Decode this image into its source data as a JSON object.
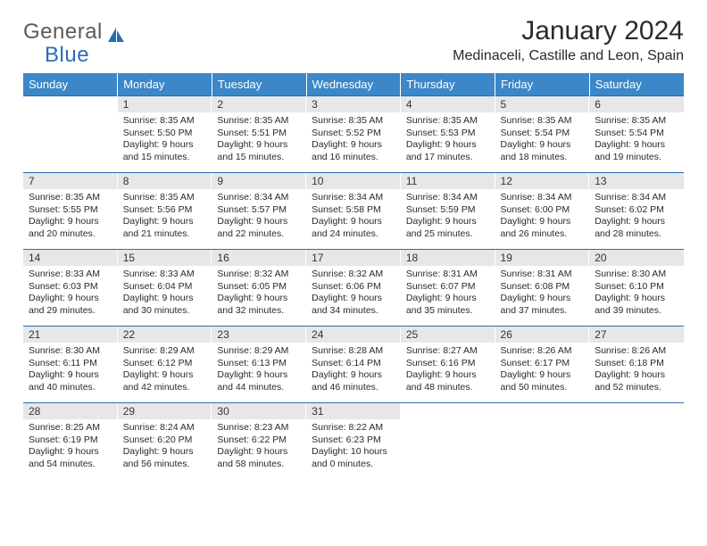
{
  "logo": {
    "part1": "General",
    "part2": "Blue"
  },
  "title": "January 2024",
  "location": "Medinaceli, Castille and Leon, Spain",
  "colors": {
    "header_bg": "#3b87c8",
    "header_text": "#ffffff",
    "daynum_bg": "#e7e7e7",
    "rule": "#2a6db5",
    "logo_gray": "#5a5a5a",
    "logo_blue": "#2a6db5",
    "page_bg": "#ffffff",
    "text": "#2a2a2a"
  },
  "typography": {
    "title_fontsize": 30,
    "location_fontsize": 16,
    "weekday_fontsize": 13,
    "daynum_fontsize": 12,
    "body_fontsize": 10.5
  },
  "weekdays": [
    "Sunday",
    "Monday",
    "Tuesday",
    "Wednesday",
    "Thursday",
    "Friday",
    "Saturday"
  ],
  "weeks": [
    [
      {
        "n": "",
        "sr": "",
        "ss": "",
        "dl1": "",
        "dl2": ""
      },
      {
        "n": "1",
        "sr": "Sunrise: 8:35 AM",
        "ss": "Sunset: 5:50 PM",
        "dl1": "Daylight: 9 hours",
        "dl2": "and 15 minutes."
      },
      {
        "n": "2",
        "sr": "Sunrise: 8:35 AM",
        "ss": "Sunset: 5:51 PM",
        "dl1": "Daylight: 9 hours",
        "dl2": "and 15 minutes."
      },
      {
        "n": "3",
        "sr": "Sunrise: 8:35 AM",
        "ss": "Sunset: 5:52 PM",
        "dl1": "Daylight: 9 hours",
        "dl2": "and 16 minutes."
      },
      {
        "n": "4",
        "sr": "Sunrise: 8:35 AM",
        "ss": "Sunset: 5:53 PM",
        "dl1": "Daylight: 9 hours",
        "dl2": "and 17 minutes."
      },
      {
        "n": "5",
        "sr": "Sunrise: 8:35 AM",
        "ss": "Sunset: 5:54 PM",
        "dl1": "Daylight: 9 hours",
        "dl2": "and 18 minutes."
      },
      {
        "n": "6",
        "sr": "Sunrise: 8:35 AM",
        "ss": "Sunset: 5:54 PM",
        "dl1": "Daylight: 9 hours",
        "dl2": "and 19 minutes."
      }
    ],
    [
      {
        "n": "7",
        "sr": "Sunrise: 8:35 AM",
        "ss": "Sunset: 5:55 PM",
        "dl1": "Daylight: 9 hours",
        "dl2": "and 20 minutes."
      },
      {
        "n": "8",
        "sr": "Sunrise: 8:35 AM",
        "ss": "Sunset: 5:56 PM",
        "dl1": "Daylight: 9 hours",
        "dl2": "and 21 minutes."
      },
      {
        "n": "9",
        "sr": "Sunrise: 8:34 AM",
        "ss": "Sunset: 5:57 PM",
        "dl1": "Daylight: 9 hours",
        "dl2": "and 22 minutes."
      },
      {
        "n": "10",
        "sr": "Sunrise: 8:34 AM",
        "ss": "Sunset: 5:58 PM",
        "dl1": "Daylight: 9 hours",
        "dl2": "and 24 minutes."
      },
      {
        "n": "11",
        "sr": "Sunrise: 8:34 AM",
        "ss": "Sunset: 5:59 PM",
        "dl1": "Daylight: 9 hours",
        "dl2": "and 25 minutes."
      },
      {
        "n": "12",
        "sr": "Sunrise: 8:34 AM",
        "ss": "Sunset: 6:00 PM",
        "dl1": "Daylight: 9 hours",
        "dl2": "and 26 minutes."
      },
      {
        "n": "13",
        "sr": "Sunrise: 8:34 AM",
        "ss": "Sunset: 6:02 PM",
        "dl1": "Daylight: 9 hours",
        "dl2": "and 28 minutes."
      }
    ],
    [
      {
        "n": "14",
        "sr": "Sunrise: 8:33 AM",
        "ss": "Sunset: 6:03 PM",
        "dl1": "Daylight: 9 hours",
        "dl2": "and 29 minutes."
      },
      {
        "n": "15",
        "sr": "Sunrise: 8:33 AM",
        "ss": "Sunset: 6:04 PM",
        "dl1": "Daylight: 9 hours",
        "dl2": "and 30 minutes."
      },
      {
        "n": "16",
        "sr": "Sunrise: 8:32 AM",
        "ss": "Sunset: 6:05 PM",
        "dl1": "Daylight: 9 hours",
        "dl2": "and 32 minutes."
      },
      {
        "n": "17",
        "sr": "Sunrise: 8:32 AM",
        "ss": "Sunset: 6:06 PM",
        "dl1": "Daylight: 9 hours",
        "dl2": "and 34 minutes."
      },
      {
        "n": "18",
        "sr": "Sunrise: 8:31 AM",
        "ss": "Sunset: 6:07 PM",
        "dl1": "Daylight: 9 hours",
        "dl2": "and 35 minutes."
      },
      {
        "n": "19",
        "sr": "Sunrise: 8:31 AM",
        "ss": "Sunset: 6:08 PM",
        "dl1": "Daylight: 9 hours",
        "dl2": "and 37 minutes."
      },
      {
        "n": "20",
        "sr": "Sunrise: 8:30 AM",
        "ss": "Sunset: 6:10 PM",
        "dl1": "Daylight: 9 hours",
        "dl2": "and 39 minutes."
      }
    ],
    [
      {
        "n": "21",
        "sr": "Sunrise: 8:30 AM",
        "ss": "Sunset: 6:11 PM",
        "dl1": "Daylight: 9 hours",
        "dl2": "and 40 minutes."
      },
      {
        "n": "22",
        "sr": "Sunrise: 8:29 AM",
        "ss": "Sunset: 6:12 PM",
        "dl1": "Daylight: 9 hours",
        "dl2": "and 42 minutes."
      },
      {
        "n": "23",
        "sr": "Sunrise: 8:29 AM",
        "ss": "Sunset: 6:13 PM",
        "dl1": "Daylight: 9 hours",
        "dl2": "and 44 minutes."
      },
      {
        "n": "24",
        "sr": "Sunrise: 8:28 AM",
        "ss": "Sunset: 6:14 PM",
        "dl1": "Daylight: 9 hours",
        "dl2": "and 46 minutes."
      },
      {
        "n": "25",
        "sr": "Sunrise: 8:27 AM",
        "ss": "Sunset: 6:16 PM",
        "dl1": "Daylight: 9 hours",
        "dl2": "and 48 minutes."
      },
      {
        "n": "26",
        "sr": "Sunrise: 8:26 AM",
        "ss": "Sunset: 6:17 PM",
        "dl1": "Daylight: 9 hours",
        "dl2": "and 50 minutes."
      },
      {
        "n": "27",
        "sr": "Sunrise: 8:26 AM",
        "ss": "Sunset: 6:18 PM",
        "dl1": "Daylight: 9 hours",
        "dl2": "and 52 minutes."
      }
    ],
    [
      {
        "n": "28",
        "sr": "Sunrise: 8:25 AM",
        "ss": "Sunset: 6:19 PM",
        "dl1": "Daylight: 9 hours",
        "dl2": "and 54 minutes."
      },
      {
        "n": "29",
        "sr": "Sunrise: 8:24 AM",
        "ss": "Sunset: 6:20 PM",
        "dl1": "Daylight: 9 hours",
        "dl2": "and 56 minutes."
      },
      {
        "n": "30",
        "sr": "Sunrise: 8:23 AM",
        "ss": "Sunset: 6:22 PM",
        "dl1": "Daylight: 9 hours",
        "dl2": "and 58 minutes."
      },
      {
        "n": "31",
        "sr": "Sunrise: 8:22 AM",
        "ss": "Sunset: 6:23 PM",
        "dl1": "Daylight: 10 hours",
        "dl2": "and 0 minutes."
      },
      {
        "n": "",
        "sr": "",
        "ss": "",
        "dl1": "",
        "dl2": ""
      },
      {
        "n": "",
        "sr": "",
        "ss": "",
        "dl1": "",
        "dl2": ""
      },
      {
        "n": "",
        "sr": "",
        "ss": "",
        "dl1": "",
        "dl2": ""
      }
    ]
  ]
}
